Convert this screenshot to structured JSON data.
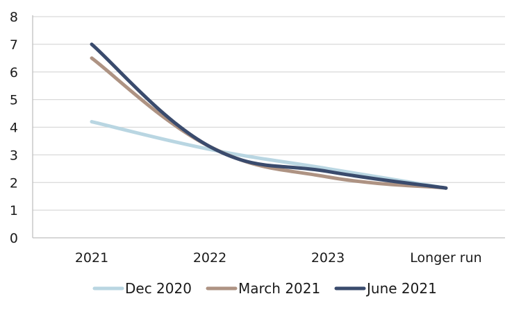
{
  "chart_data": {
    "type": "line",
    "title": "",
    "xlabel": "",
    "ylabel": "",
    "categories": [
      "2021",
      "2022",
      "2023",
      "Longer run"
    ],
    "ylim": [
      0,
      8
    ],
    "yticks": [
      "0",
      "1",
      "2",
      "3",
      "4",
      "5",
      "6",
      "7",
      "8"
    ],
    "grid": "horizontal",
    "legend": "bottom",
    "series": [
      {
        "name": "Dec 2020",
        "color": "#b9d6e2",
        "values": [
          4.2,
          3.2,
          2.5,
          1.8
        ]
      },
      {
        "name": "March 2021",
        "color": "#ae9383",
        "values": [
          6.5,
          3.3,
          2.2,
          1.8
        ]
      },
      {
        "name": "June 2021",
        "color": "#3a4b6d",
        "values": [
          7.0,
          3.3,
          2.4,
          1.8
        ]
      }
    ]
  }
}
